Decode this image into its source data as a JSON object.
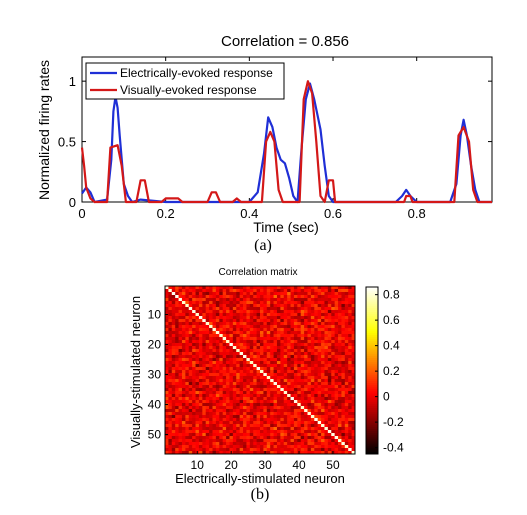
{
  "chart_data": [
    {
      "type": "line",
      "title": "Correlation = 0.856",
      "xlabel": "Time (sec)",
      "ylabel": "Normalized firing rates",
      "xlim": [
        0,
        0.98
      ],
      "ylim": [
        0,
        1.2
      ],
      "xticks": [
        "0",
        "0.2",
        "0.4",
        "0.6",
        "0.8"
      ],
      "xtick_values": [
        0,
        0.2,
        0.4,
        0.6,
        0.8
      ],
      "yticks": [
        "0",
        "0.5",
        "1"
      ],
      "ytick_values": [
        0,
        0.5,
        1
      ],
      "legend_position": "top-left",
      "caption": "(a)",
      "series": [
        {
          "name": "Electrically-evoked response",
          "color": "#1f2fd6",
          "points": [
            [
              0,
              0.07
            ],
            [
              0.01,
              0.12
            ],
            [
              0.02,
              0.08
            ],
            [
              0.03,
              0.0
            ],
            [
              0.06,
              0.02
            ],
            [
              0.07,
              0.35
            ],
            [
              0.075,
              0.75
            ],
            [
              0.08,
              0.87
            ],
            [
              0.085,
              0.78
            ],
            [
              0.09,
              0.55
            ],
            [
              0.1,
              0.15
            ],
            [
              0.11,
              0.05
            ],
            [
              0.12,
              0.0
            ],
            [
              0.14,
              0.02
            ],
            [
              0.2,
              0.0
            ],
            [
              0.3,
              0.0
            ],
            [
              0.4,
              0.0
            ],
            [
              0.42,
              0.08
            ],
            [
              0.435,
              0.4
            ],
            [
              0.445,
              0.7
            ],
            [
              0.455,
              0.62
            ],
            [
              0.465,
              0.45
            ],
            [
              0.475,
              0.35
            ],
            [
              0.485,
              0.32
            ],
            [
              0.495,
              0.2
            ],
            [
              0.505,
              0.05
            ],
            [
              0.515,
              0.0
            ],
            [
              0.525,
              0.45
            ],
            [
              0.535,
              0.85
            ],
            [
              0.545,
              0.98
            ],
            [
              0.555,
              0.85
            ],
            [
              0.57,
              0.6
            ],
            [
              0.58,
              0.3
            ],
            [
              0.59,
              0.05
            ],
            [
              0.6,
              0.0
            ],
            [
              0.65,
              0.0
            ],
            [
              0.75,
              0.0
            ],
            [
              0.765,
              0.05
            ],
            [
              0.775,
              0.1
            ],
            [
              0.785,
              0.05
            ],
            [
              0.8,
              0.0
            ],
            [
              0.88,
              0.0
            ],
            [
              0.895,
              0.15
            ],
            [
              0.905,
              0.55
            ],
            [
              0.912,
              0.68
            ],
            [
              0.92,
              0.55
            ],
            [
              0.93,
              0.3
            ],
            [
              0.94,
              0.1
            ],
            [
              0.95,
              0.0
            ],
            [
              0.98,
              0.0
            ]
          ]
        },
        {
          "name": "Visually-evoked response",
          "color": "#d41818",
          "points": [
            [
              0,
              0.45
            ],
            [
              0.005,
              0.3
            ],
            [
              0.01,
              0.12
            ],
            [
              0.02,
              0.03
            ],
            [
              0.03,
              0.0
            ],
            [
              0.06,
              0.0
            ],
            [
              0.068,
              0.45
            ],
            [
              0.085,
              0.47
            ],
            [
              0.095,
              0.3
            ],
            [
              0.105,
              0.0
            ],
            [
              0.13,
              0.0
            ],
            [
              0.14,
              0.18
            ],
            [
              0.15,
              0.18
            ],
            [
              0.16,
              0.0
            ],
            [
              0.19,
              0.0
            ],
            [
              0.2,
              0.03
            ],
            [
              0.23,
              0.03
            ],
            [
              0.24,
              0.0
            ],
            [
              0.3,
              0.0
            ],
            [
              0.31,
              0.08
            ],
            [
              0.32,
              0.08
            ],
            [
              0.33,
              0.0
            ],
            [
              0.36,
              0.0
            ],
            [
              0.37,
              0.03
            ],
            [
              0.38,
              0.0
            ],
            [
              0.43,
              0.0
            ],
            [
              0.44,
              0.5
            ],
            [
              0.45,
              0.58
            ],
            [
              0.46,
              0.5
            ],
            [
              0.47,
              0.1
            ],
            [
              0.48,
              0.0
            ],
            [
              0.52,
              0.0
            ],
            [
              0.53,
              0.85
            ],
            [
              0.54,
              1.0
            ],
            [
              0.55,
              0.9
            ],
            [
              0.56,
              0.5
            ],
            [
              0.57,
              0.05
            ],
            [
              0.58,
              0.0
            ],
            [
              0.59,
              0.18
            ],
            [
              0.6,
              0.18
            ],
            [
              0.605,
              0.0
            ],
            [
              0.7,
              0.0
            ],
            [
              0.77,
              0.0
            ],
            [
              0.775,
              0.05
            ],
            [
              0.785,
              0.05
            ],
            [
              0.79,
              0.0
            ],
            [
              0.89,
              0.0
            ],
            [
              0.9,
              0.55
            ],
            [
              0.912,
              0.62
            ],
            [
              0.925,
              0.5
            ],
            [
              0.935,
              0.1
            ],
            [
              0.945,
              0.0
            ],
            [
              0.98,
              0.0
            ]
          ]
        }
      ]
    },
    {
      "type": "heatmap",
      "title": "Correlation matrix",
      "xlabel": "Electrically-stimulated neuron",
      "ylabel": "Visually-stimulated neuron",
      "size": 56,
      "xticks": [
        "10",
        "20",
        "30",
        "40",
        "50"
      ],
      "yticks": [
        "10",
        "20",
        "30",
        "40",
        "50"
      ],
      "tick_values": [
        10,
        20,
        30,
        40,
        50
      ],
      "colorbar_ticks": [
        "0.8",
        "0.6",
        "0.4",
        "0.2",
        "0",
        "-0.2",
        "-0.4"
      ],
      "colorbar_values": [
        0.8,
        0.6,
        0.4,
        0.2,
        0,
        -0.2,
        -0.4
      ],
      "clim": [
        -0.45,
        0.86
      ],
      "colormap": "hot",
      "caption": "(b)"
    }
  ]
}
